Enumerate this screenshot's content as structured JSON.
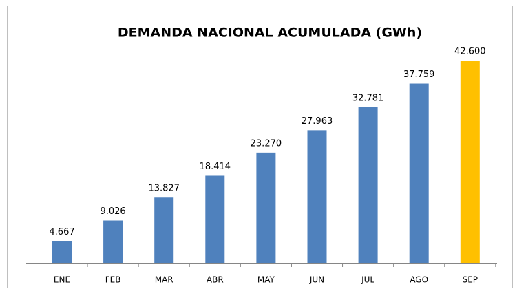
{
  "chart_data": {
    "type": "bar",
    "title": "DEMANDA NACIONAL ACUMULADA (GWh)",
    "categories": [
      "ENE",
      "FEB",
      "MAR",
      "ABR",
      "MAY",
      "JUN",
      "JUL",
      "AGO",
      "SEP"
    ],
    "values": [
      4667,
      9026,
      13827,
      18414,
      23270,
      27963,
      32781,
      37759,
      42600
    ],
    "value_labels": [
      "4.667",
      "9.026",
      "13.827",
      "18.414",
      "23.270",
      "27.963",
      "32.781",
      "37.759",
      "42.600"
    ],
    "colors": [
      "#4f81bd",
      "#4f81bd",
      "#4f81bd",
      "#4f81bd",
      "#4f81bd",
      "#4f81bd",
      "#4f81bd",
      "#4f81bd",
      "#ffc000"
    ]
  }
}
